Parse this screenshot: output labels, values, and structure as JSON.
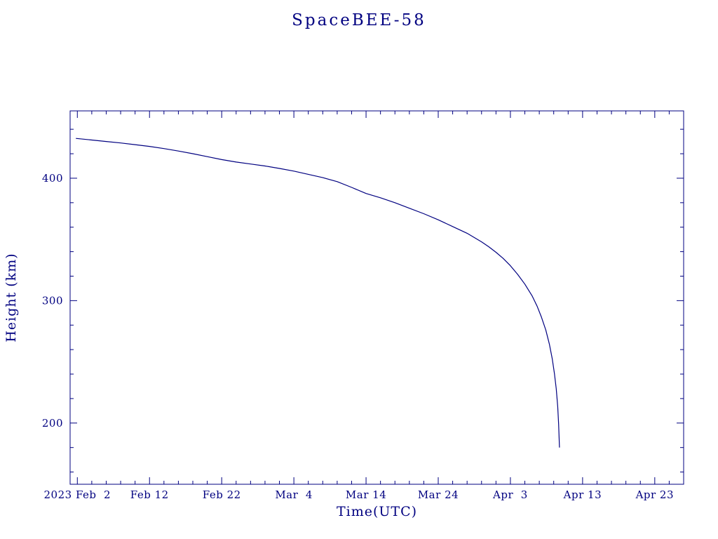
{
  "page": {
    "background": "#ffffff"
  },
  "colors": {
    "ink": "#000080",
    "curve": "#000080",
    "background": "#ffffff"
  },
  "chart_data": {
    "type": "line",
    "title": "SpaceBEE-58",
    "xlabel": "Time(UTC)",
    "ylabel": "Height (km)",
    "legend": "none",
    "grid": false,
    "x_axis": {
      "unit": "days since 2023 Feb 1 00:00 UTC",
      "lim": [
        0,
        85
      ],
      "major_ticks": [
        {
          "day": 1,
          "label": "2023 Feb  2"
        },
        {
          "day": 11,
          "label": "Feb 12"
        },
        {
          "day": 21,
          "label": "Feb 22"
        },
        {
          "day": 31,
          "label": "Mar  4"
        },
        {
          "day": 41,
          "label": "Mar 14"
        },
        {
          "day": 51,
          "label": "Mar 24"
        },
        {
          "day": 61,
          "label": "Apr  3"
        },
        {
          "day": 71,
          "label": "Apr 13"
        },
        {
          "day": 81,
          "label": "Apr 23"
        }
      ],
      "minor_step": 2
    },
    "y_axis": {
      "lim": [
        150,
        455
      ],
      "major_ticks": [
        200,
        300,
        400
      ],
      "minor_step": 20
    },
    "series": [
      {
        "name": "Height (km)",
        "color": "#000080",
        "points": [
          [
            0.8,
            432.5
          ],
          [
            3,
            431.2
          ],
          [
            5,
            430.0
          ],
          [
            7,
            428.8
          ],
          [
            9,
            427.4
          ],
          [
            11,
            426.0
          ],
          [
            13,
            424.2
          ],
          [
            15,
            422.2
          ],
          [
            17,
            420.0
          ],
          [
            19,
            417.6
          ],
          [
            21,
            415.2
          ],
          [
            23,
            413.2
          ],
          [
            25,
            411.6
          ],
          [
            27,
            410.0
          ],
          [
            29,
            408.0
          ],
          [
            31,
            405.8
          ],
          [
            33,
            403.2
          ],
          [
            35,
            400.5
          ],
          [
            37,
            397.2
          ],
          [
            39,
            392.5
          ],
          [
            41,
            387.5
          ],
          [
            43,
            384.0
          ],
          [
            45,
            380.0
          ],
          [
            47,
            375.5
          ],
          [
            49,
            371.0
          ],
          [
            51,
            366.0
          ],
          [
            53,
            360.5
          ],
          [
            55,
            355.0
          ],
          [
            56,
            351.5
          ],
          [
            57,
            348.0
          ],
          [
            58,
            344.0
          ],
          [
            59,
            339.5
          ],
          [
            60,
            334.5
          ],
          [
            61,
            328.5
          ],
          [
            62,
            321.5
          ],
          [
            63,
            313.5
          ],
          [
            64,
            304.0
          ],
          [
            64.7,
            295.5
          ],
          [
            65.3,
            286.5
          ],
          [
            65.9,
            276.0
          ],
          [
            66.4,
            264.5
          ],
          [
            66.8,
            252.5
          ],
          [
            67.1,
            240.5
          ],
          [
            67.35,
            228.0
          ],
          [
            67.55,
            213.5
          ],
          [
            67.68,
            199.0
          ],
          [
            67.75,
            188.0
          ],
          [
            67.8,
            180.0
          ]
        ]
      }
    ]
  }
}
